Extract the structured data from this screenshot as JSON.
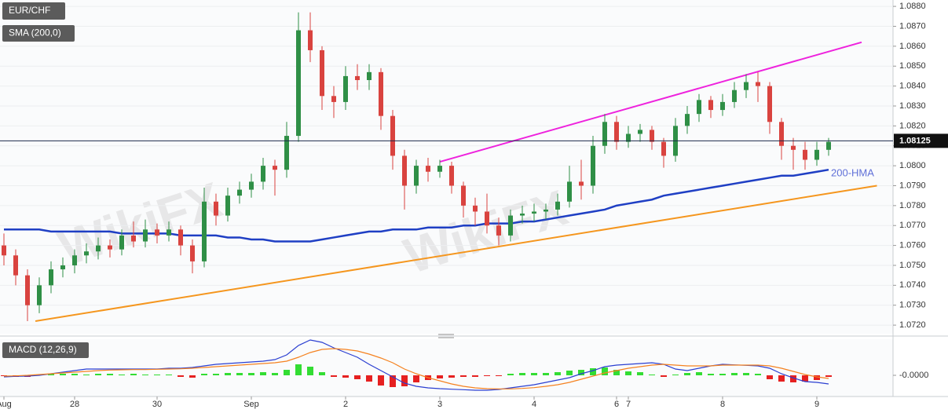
{
  "chart_data": {
    "type": "candlestick",
    "title": "EUR/CHF",
    "overlay_label": "SMA (200,0)",
    "categories": [
      "Aug",
      null,
      null,
      null,
      null,
      null,
      "28",
      null,
      null,
      null,
      null,
      null,
      null,
      "30",
      null,
      null,
      null,
      null,
      null,
      null,
      null,
      "Sep",
      null,
      null,
      null,
      null,
      null,
      null,
      null,
      "2",
      null,
      null,
      null,
      null,
      null,
      null,
      null,
      "3",
      null,
      null,
      null,
      null,
      null,
      null,
      null,
      "4",
      null,
      null,
      null,
      null,
      null,
      null,
      "6",
      "7",
      null,
      null,
      null,
      null,
      null,
      null,
      null,
      "8",
      null,
      null,
      null,
      null,
      null,
      null,
      null,
      "9",
      null
    ],
    "open": [
      1.076,
      1.0755,
      1.0745,
      1.073,
      1.074,
      1.0748,
      1.075,
      1.0755,
      1.0757,
      1.076,
      1.0758,
      1.0765,
      1.0762,
      1.0768,
      1.0765,
      1.0768,
      1.076,
      1.0752,
      1.0782,
      1.0775,
      1.0785,
      1.0788,
      1.0792,
      1.08,
      1.0798,
      1.0815,
      1.0868,
      1.0858,
      1.0835,
      1.0832,
      1.0845,
      1.0843,
      1.0847,
      1.0825,
      1.0805,
      1.079,
      1.08,
      1.0797,
      1.08,
      1.079,
      1.078,
      1.0777,
      1.077,
      1.0765,
      1.0775,
      1.0776,
      1.0777,
      1.0778,
      1.0782,
      1.0792,
      1.079,
      1.081,
      1.0822,
      1.0812,
      1.0816,
      1.0818,
      1.0812,
      1.0805,
      1.082,
      1.0826,
      1.0833,
      1.0828,
      1.0832,
      1.0838,
      1.0842,
      1.084,
      1.0822,
      1.081,
      1.0808,
      1.0803,
      1.0808
    ],
    "high": [
      1.0766,
      1.0758,
      1.0748,
      1.0744,
      1.0752,
      1.0754,
      1.0758,
      1.0761,
      1.0764,
      1.0763,
      1.0768,
      1.0772,
      1.0773,
      1.0771,
      1.0772,
      1.077,
      1.0763,
      1.0789,
      1.0786,
      1.0789,
      1.0792,
      1.0796,
      1.0804,
      1.0803,
      1.0822,
      1.0877,
      1.0877,
      1.086,
      1.084,
      1.085,
      1.0851,
      1.0851,
      1.0849,
      1.0828,
      1.0808,
      1.0803,
      1.0804,
      1.0803,
      1.0802,
      1.0792,
      1.0784,
      1.0786,
      1.0774,
      1.0778,
      1.078,
      1.0781,
      1.0781,
      1.0786,
      1.08,
      1.0803,
      1.0815,
      1.0826,
      1.0825,
      1.082,
      1.0821,
      1.082,
      1.0814,
      1.0824,
      1.083,
      1.0836,
      1.0835,
      1.0836,
      1.0842,
      1.0846,
      1.0847,
      1.0842,
      1.0824,
      1.0814,
      1.0812,
      1.0812,
      1.0814
    ],
    "low": [
      1.075,
      1.074,
      1.0722,
      1.0726,
      1.0736,
      1.0744,
      1.0746,
      1.0751,
      1.0753,
      1.0754,
      1.0755,
      1.0759,
      1.0759,
      1.0761,
      1.0762,
      1.0755,
      1.0746,
      1.0749,
      1.077,
      1.0772,
      1.0781,
      1.0784,
      1.0788,
      1.0785,
      1.0794,
      1.0812,
      1.0852,
      1.0828,
      1.0824,
      1.0828,
      1.0838,
      1.0838,
      1.0818,
      1.0798,
      1.0778,
      1.0786,
      1.0792,
      1.0794,
      1.0786,
      1.0774,
      1.077,
      1.0766,
      1.076,
      1.0762,
      1.0771,
      1.0772,
      1.0773,
      1.0775,
      1.0779,
      1.0783,
      1.0786,
      1.0806,
      1.0808,
      1.0809,
      1.0812,
      1.0808,
      1.0799,
      1.0802,
      1.0816,
      1.0822,
      1.0824,
      1.0825,
      1.0829,
      1.0834,
      1.0832,
      1.0816,
      1.0803,
      1.0798,
      1.0798,
      1.08,
      1.0805
    ],
    "close": [
      1.0755,
      1.0745,
      1.073,
      1.074,
      1.0748,
      1.075,
      1.0755,
      1.0757,
      1.076,
      1.0758,
      1.0765,
      1.0762,
      1.0768,
      1.0765,
      1.0768,
      1.076,
      1.0752,
      1.0782,
      1.0775,
      1.0785,
      1.0788,
      1.0792,
      1.08,
      1.0798,
      1.0815,
      1.0868,
      1.0858,
      1.0835,
      1.0832,
      1.0845,
      1.0843,
      1.0847,
      1.0825,
      1.0805,
      1.079,
      1.08,
      1.0797,
      1.08,
      1.079,
      1.078,
      1.0777,
      1.077,
      1.0765,
      1.0775,
      1.0776,
      1.0777,
      1.0778,
      1.0782,
      1.0792,
      1.079,
      1.081,
      1.0822,
      1.0812,
      1.0816,
      1.0818,
      1.0812,
      1.0805,
      1.082,
      1.0826,
      1.0833,
      1.0828,
      1.0832,
      1.0838,
      1.0842,
      1.084,
      1.0822,
      1.081,
      1.0808,
      1.0803,
      1.0808,
      1.0812
    ],
    "up_color": "#2f8f46",
    "down_color": "#d9433f",
    "hma": {
      "name": "200-HMA",
      "color": "#1f3fc4",
      "values": [
        1.0768,
        1.0768,
        1.0768,
        1.0768,
        1.0767,
        1.0767,
        1.0767,
        1.0767,
        1.0767,
        1.0767,
        1.0766,
        1.0766,
        1.0766,
        1.0766,
        1.0766,
        1.0765,
        1.0765,
        1.0765,
        1.0765,
        1.0764,
        1.0764,
        1.0763,
        1.0763,
        1.0762,
        1.0762,
        1.0762,
        1.0762,
        1.0763,
        1.0764,
        1.0765,
        1.0766,
        1.0767,
        1.0767,
        1.0768,
        1.0768,
        1.0768,
        1.0769,
        1.0769,
        1.0769,
        1.077,
        1.077,
        1.0771,
        1.0771,
        1.0771,
        1.0772,
        1.0772,
        1.0773,
        1.0774,
        1.0775,
        1.0776,
        1.0777,
        1.0778,
        1.078,
        1.0781,
        1.0782,
        1.0783,
        1.0785,
        1.0786,
        1.0787,
        1.0788,
        1.0789,
        1.079,
        1.0791,
        1.0792,
        1.0793,
        1.0794,
        1.0795,
        1.0795,
        1.0796,
        1.0797,
        1.0798
      ]
    },
    "trendlines": [
      {
        "color": "#ee22dd",
        "start": {
          "index": 37,
          "value": 1.0802
        },
        "end": {
          "index": 72.8,
          "value": 1.0862
        }
      },
      {
        "color": "#f5961e",
        "start": {
          "index": 2.67,
          "value": 1.0722
        },
        "end": {
          "index": 74.1,
          "value": 1.079
        }
      }
    ],
    "last_price": {
      "value": 1.08125,
      "label": "1.08125"
    },
    "watermark": "WikiFX",
    "ylim": [
      1.07157,
      1.08832
    ],
    "yticks": [
      {
        "value": 1.072,
        "label": "1.0720"
      },
      {
        "value": 1.073,
        "label": "1.0730"
      },
      {
        "value": 1.074,
        "label": "1.0740"
      },
      {
        "value": 1.075,
        "label": "1.0750"
      },
      {
        "value": 1.076,
        "label": "1.0760"
      },
      {
        "value": 1.077,
        "label": "1.0770"
      },
      {
        "value": 1.078,
        "label": "1.0780"
      },
      {
        "value": 1.079,
        "label": "1.0790"
      },
      {
        "value": 1.08,
        "label": "1.0800"
      },
      {
        "value": 1.081,
        "label": "1.0810"
      },
      {
        "value": 1.082,
        "label": "1.0820"
      },
      {
        "value": 1.083,
        "label": "1.0830"
      },
      {
        "value": 1.084,
        "label": "1.0840"
      },
      {
        "value": 1.085,
        "label": "1.0850"
      },
      {
        "value": 1.086,
        "label": "1.0860"
      },
      {
        "value": 1.087,
        "label": "1.0870"
      },
      {
        "value": 1.088,
        "label": "1.0880"
      }
    ],
    "grid": true,
    "macd": {
      "title": "MACD (12,26,9)",
      "ylim": [
        -0.00081,
        0.00138
      ],
      "yticks": [
        {
          "value": 0,
          "label": "-0.0000"
        }
      ],
      "pos_color": "#33dd33",
      "neg_color": "#e62020",
      "histogram": [
        -3e-05,
        -6e-05,
        -6e-05,
        3e-05,
        6e-05,
        6e-05,
        6e-05,
        3e-05,
        6e-05,
        6e-05,
        3e-05,
        6e-05,
        3e-05,
        3e-05,
        3e-05,
        -6e-05,
        -9e-05,
        6e-05,
        6e-05,
        9e-05,
        9e-05,
        9e-05,
        0.00012,
        9e-05,
        0.00021,
        0.00042,
        0.00033,
        0.00012,
        -6e-05,
        -9e-05,
        -0.00015,
        -0.00024,
        -0.00039,
        -0.00045,
        -0.00042,
        -0.00027,
        -0.00018,
        -0.00012,
        -9e-05,
        -6e-05,
        -6e-05,
        -3e-05,
        -3e-05,
        6e-05,
        9e-05,
        9e-05,
        9e-05,
        0.00012,
        0.00018,
        0.00021,
        0.00027,
        0.0003,
        0.00021,
        0.00015,
        0.00012,
        3e-05,
        -6e-05,
        3e-05,
        9e-05,
        0.00012,
        6e-05,
        6e-05,
        9e-05,
        9e-05,
        6e-05,
        -0.00015,
        -0.00024,
        -0.00027,
        -0.00024,
        -0.00018,
        -6e-05
      ],
      "series": [
        {
          "color": "#2b3fd1",
          "values": [
            -6e-05,
            -4e-05,
            -3e-05,
            0,
            6e-05,
            0.00012,
            0.00018,
            0.00024,
            0.00024,
            0.00024,
            0.00024,
            0.00024,
            0.00024,
            0.00024,
            0.00027,
            0.00027,
            0.0003,
            0.00036,
            0.00042,
            0.00045,
            0.00048,
            0.00051,
            0.00054,
            0.0006,
            0.00078,
            0.00114,
            0.00135,
            0.00126,
            0.00105,
            0.00087,
            0.00069,
            0.00042,
            0.00018,
            -6e-05,
            -0.0003,
            -0.00042,
            -0.00048,
            -0.00051,
            -0.00053,
            -0.00055,
            -0.00057,
            -0.00057,
            -0.00054,
            -0.00048,
            -0.00042,
            -0.00036,
            -0.00027,
            -0.00018,
            -9e-05,
            6e-05,
            0.00018,
            0.00033,
            0.00039,
            0.00042,
            0.00045,
            0.00048,
            0.00042,
            0.00024,
            0.00018,
            0.00027,
            0.00036,
            0.00042,
            0.0004,
            0.00038,
            0.00036,
            0.00027,
            6e-05,
            -0.0001,
            -0.00024,
            -0.00027,
            -0.00033
          ]
        },
        {
          "color": "#f58220",
          "values": [
            -3e-05,
            -2e-05,
            0,
            3e-05,
            6e-05,
            9e-05,
            0.00012,
            0.00015,
            0.00018,
            0.0002,
            0.00021,
            0.00022,
            0.00022,
            0.00023,
            0.00024,
            0.00025,
            0.00027,
            0.0003,
            0.00033,
            0.00036,
            0.00039,
            0.00042,
            0.00045,
            0.00048,
            0.00054,
            0.00069,
            0.00087,
            0.00099,
            0.00102,
            0.00099,
            0.00093,
            0.00081,
            0.00066,
            0.00048,
            0.00024,
            6e-05,
            -9e-05,
            -0.00021,
            -0.00033,
            -0.00042,
            -0.00048,
            -0.00051,
            -0.00052,
            -0.00052,
            -0.0005,
            -0.00047,
            -0.00042,
            -0.00036,
            -0.00027,
            -0.00015,
            -3e-05,
            9e-05,
            0.00018,
            0.00027,
            0.00033,
            0.00039,
            0.00042,
            0.00039,
            0.00036,
            0.00036,
            0.00036,
            0.00039,
            0.00039,
            0.00039,
            0.00039,
            0.00036,
            0.00027,
            0.00015,
            3e-05,
            -6e-05,
            -0.00012
          ]
        }
      ]
    }
  }
}
